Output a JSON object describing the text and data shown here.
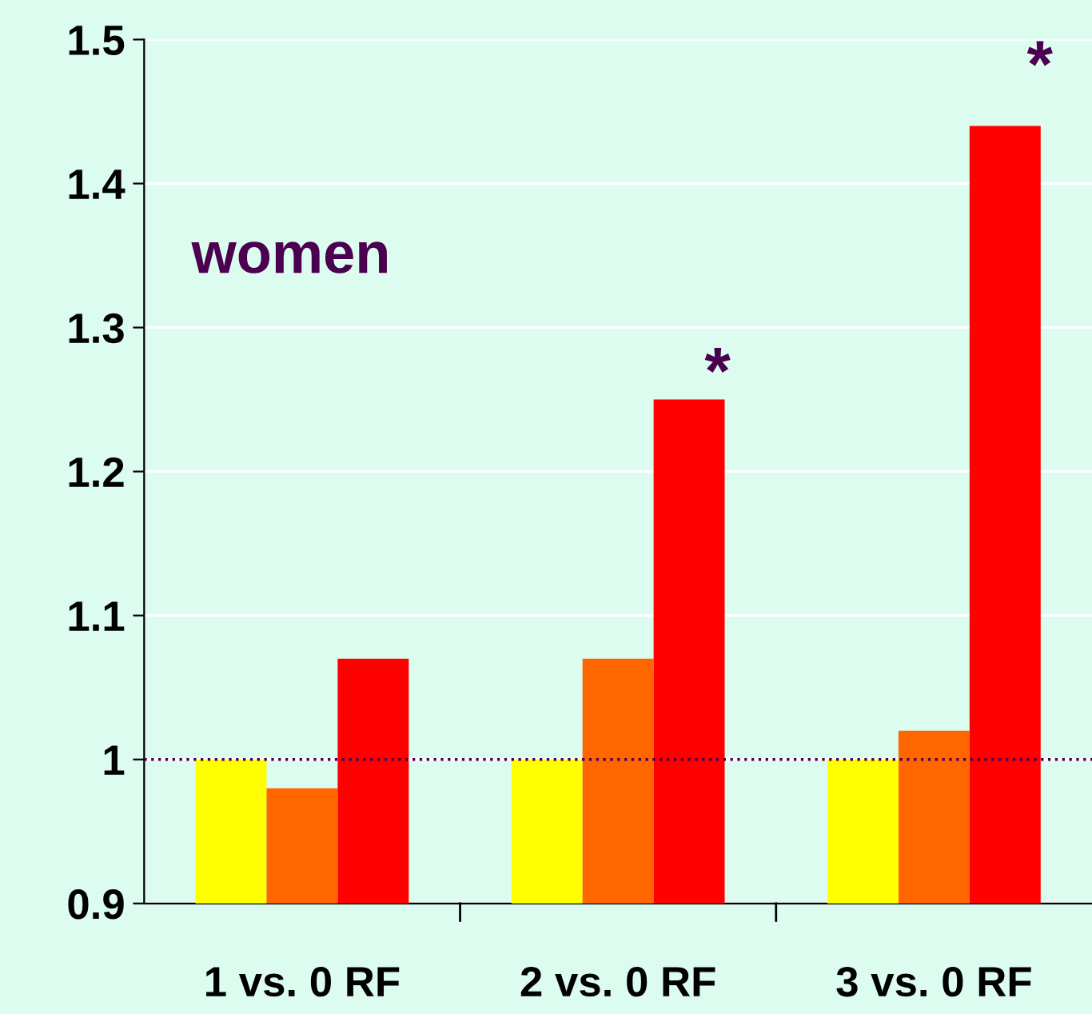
{
  "chart_data": {
    "type": "bar",
    "categories": [
      "1 vs. 0 RF",
      "2 vs. 0 RF",
      "3 vs. 0 RF"
    ],
    "series": [
      {
        "color": "#ffff00",
        "values": [
          1.0,
          1.0,
          1.0
        ]
      },
      {
        "color": "#ff6600",
        "values": [
          0.98,
          1.07,
          1.02
        ]
      },
      {
        "color": "#ff0000",
        "values": [
          1.07,
          1.25,
          1.44
        ]
      }
    ],
    "ylim": [
      0.9,
      1.5
    ],
    "yticks": [
      0.9,
      1,
      1.1,
      1.2,
      1.3,
      1.4,
      1.5
    ],
    "grid": "y",
    "legend": false,
    "ref_lines": [
      {
        "axis": "y",
        "value": 1,
        "color": "#4b0050",
        "line_style": "dotted"
      }
    ],
    "annotations": [
      "women",
      "*",
      "*"
    ]
  }
}
